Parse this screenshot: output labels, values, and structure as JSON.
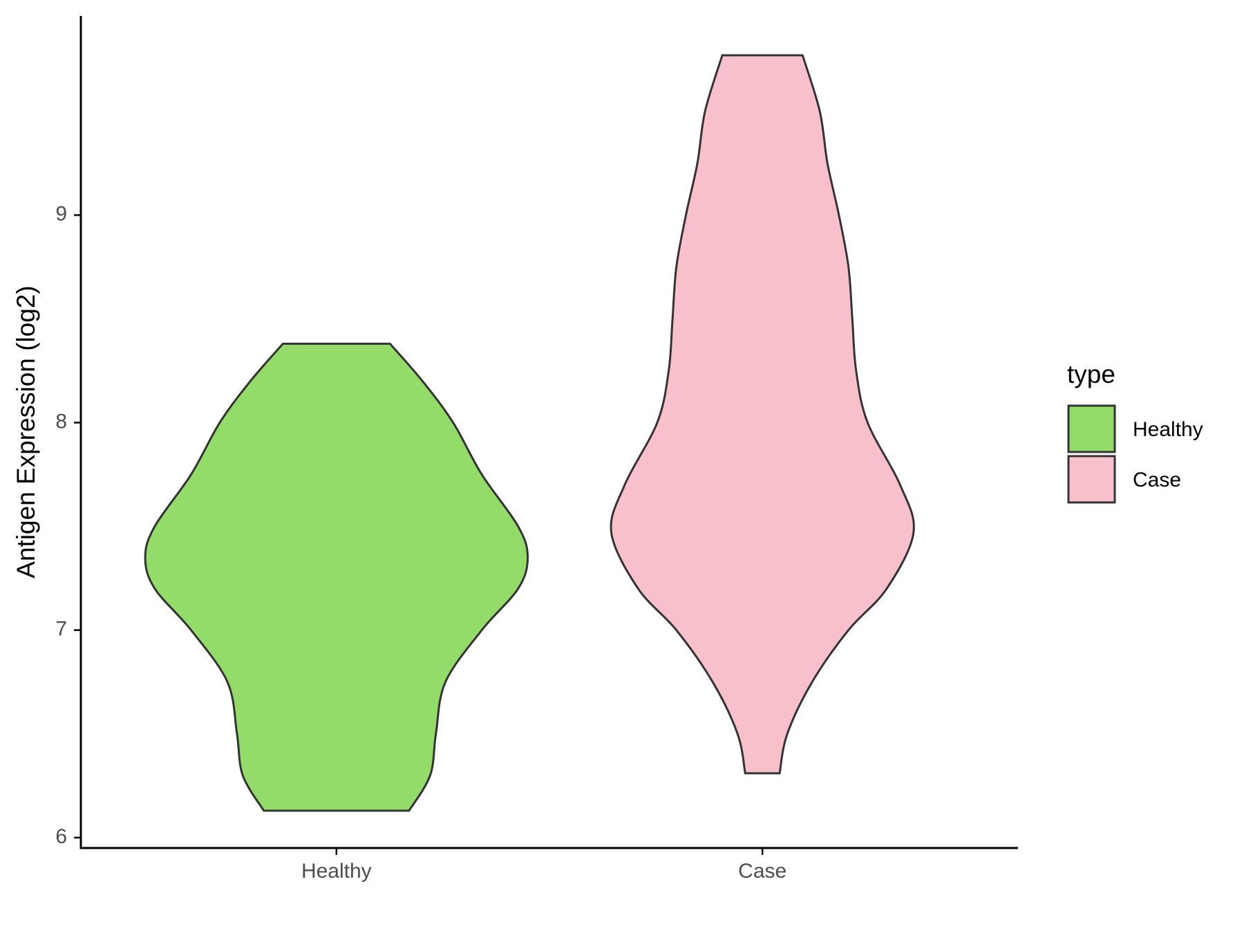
{
  "chart_data": {
    "type": "violin",
    "ylabel": "Antigen Expression (log2)",
    "categories": [
      "Healthy",
      "Case"
    ],
    "ylim": [
      5.95,
      9.96
    ],
    "yticks": [
      6,
      7,
      8,
      9
    ],
    "legend_title": "type",
    "legend_position": "right",
    "series": [
      {
        "name": "Healthy",
        "color": "#93dc6a",
        "y": [
          6.13,
          6.3,
          6.5,
          6.75,
          7.0,
          7.2,
          7.35,
          7.5,
          7.75,
          8.0,
          8.2,
          8.38
        ],
        "width": [
          0.38,
          0.49,
          0.52,
          0.57,
          0.76,
          0.95,
          1.0,
          0.95,
          0.76,
          0.61,
          0.45,
          0.28
        ]
      },
      {
        "name": "Case",
        "color": "#f8c0cb",
        "y": [
          6.31,
          6.5,
          6.75,
          7.0,
          7.2,
          7.47,
          7.7,
          8.0,
          8.25,
          8.5,
          8.75,
          9.0,
          9.25,
          9.5,
          9.77
        ],
        "width": [
          0.09,
          0.13,
          0.26,
          0.45,
          0.65,
          0.79,
          0.72,
          0.55,
          0.49,
          0.47,
          0.45,
          0.4,
          0.34,
          0.3,
          0.21
        ]
      }
    ]
  }
}
